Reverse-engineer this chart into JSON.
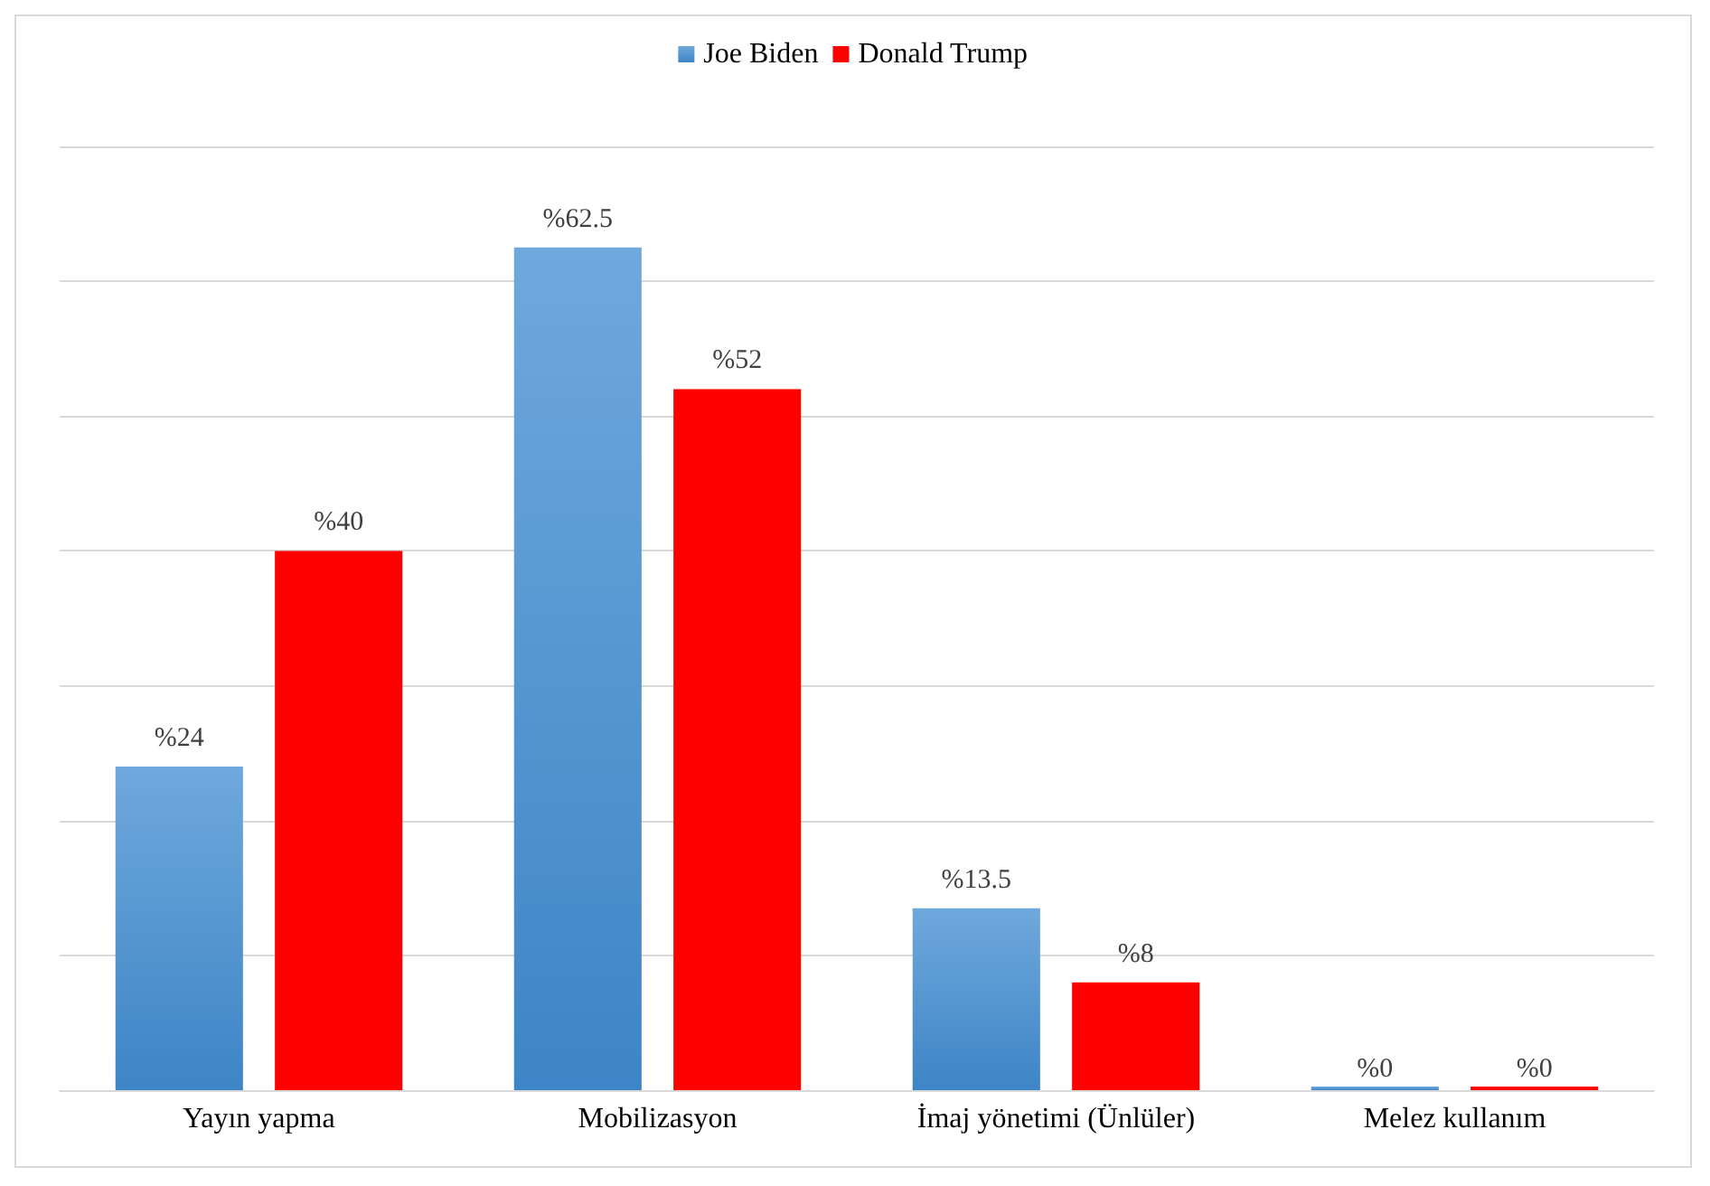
{
  "chart_data": {
    "type": "bar",
    "categories": [
      "Yayın yapma",
      "Mobilizasyon",
      "İmaj yönetimi (Ünlüler)",
      "Melez kullanım"
    ],
    "series": [
      {
        "name": "Joe Biden",
        "color": "#5b9bd5",
        "values": [
          24,
          62.5,
          13.5,
          0
        ],
        "value_labels": [
          "%24",
          "%62.5",
          "%13.5",
          "%0"
        ]
      },
      {
        "name": "Donald Trump",
        "color": "#ff0000",
        "values": [
          40,
          52,
          8,
          0
        ],
        "value_labels": [
          "%40",
          "%52",
          "%8",
          "%0"
        ]
      }
    ],
    "ylim": [
      0,
      70
    ],
    "yticks": [
      0,
      10,
      20,
      30,
      40,
      50,
      60,
      70
    ],
    "tick_labels": "x",
    "grid": "y",
    "legend": "top"
  }
}
